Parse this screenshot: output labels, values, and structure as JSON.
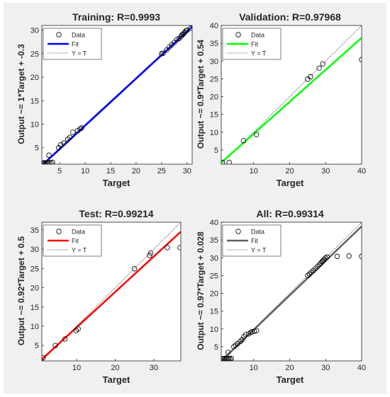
{
  "colors": {
    "figure_bg": "#f0f0f0",
    "axes_bg": "#ffffff",
    "axis_line": "#262626",
    "yt_line": "#404040",
    "marker": "#000000"
  },
  "chart_data": [
    {
      "type": "scatter",
      "title": "Training: R=0.9993",
      "xlabel": "Target",
      "ylabel": "Output ~= 1*Target + -0.3",
      "xlim": [
        1.5,
        31
      ],
      "ylim": [
        1.5,
        31
      ],
      "xticks": [
        5,
        10,
        15,
        20,
        25,
        30
      ],
      "yticks": [
        5,
        10,
        15,
        20,
        25,
        30
      ],
      "fit": {
        "slope": 1.0,
        "intercept": -0.3,
        "color": "#0000ff"
      },
      "legend": {
        "placement": "top-left",
        "entries": [
          "Data",
          "Fit",
          "Y = T"
        ]
      },
      "points": [
        [
          1.6,
          1.7
        ],
        [
          1.8,
          1.7
        ],
        [
          2.0,
          1.8
        ],
        [
          2.2,
          1.7
        ],
        [
          2.5,
          1.8
        ],
        [
          2.7,
          1.7
        ],
        [
          3.0,
          1.8
        ],
        [
          3.3,
          1.8
        ],
        [
          3.6,
          1.9
        ],
        [
          2.9,
          3.4
        ],
        [
          4.8,
          5.0
        ],
        [
          5.2,
          5.6
        ],
        [
          5.8,
          6.0
        ],
        [
          6.6,
          6.8
        ],
        [
          7.0,
          7.2
        ],
        [
          7.6,
          8.3
        ],
        [
          8.5,
          8.6
        ],
        [
          9.0,
          9.0
        ],
        [
          9.3,
          9.2
        ],
        [
          25.0,
          25.0
        ],
        [
          25.3,
          25.1
        ],
        [
          26.0,
          25.8
        ],
        [
          26.5,
          26.4
        ],
        [
          27.0,
          26.9
        ],
        [
          27.5,
          27.4
        ],
        [
          28.0,
          28.0
        ],
        [
          28.4,
          28.2
        ],
        [
          28.8,
          28.6
        ],
        [
          29.0,
          29.0
        ],
        [
          29.2,
          29.1
        ],
        [
          29.4,
          29.4
        ],
        [
          29.6,
          29.6
        ],
        [
          29.8,
          29.9
        ],
        [
          30.0,
          30.0
        ],
        [
          30.7,
          30.4
        ]
      ]
    },
    {
      "type": "scatter",
      "title": "Validation: R=0.97968",
      "xlabel": "Target",
      "ylabel": "Output ~= 0.9*Target + 0.54",
      "xlim": [
        1,
        40
      ],
      "ylim": [
        1,
        40
      ],
      "xticks": [
        10,
        20,
        30,
        40
      ],
      "yticks": [
        5,
        10,
        15,
        20,
        25,
        30,
        35,
        40
      ],
      "fit": {
        "slope": 0.9,
        "intercept": 0.54,
        "color": "#00ff00"
      },
      "legend": {
        "placement": "top-left",
        "entries": [
          "Data",
          "Fit",
          "Y = T"
        ]
      },
      "points": [
        [
          1.3,
          1.5
        ],
        [
          3.2,
          1.5
        ],
        [
          7.2,
          7.6
        ],
        [
          10.8,
          9.3
        ],
        [
          25.0,
          24.9
        ],
        [
          25.8,
          25.6
        ],
        [
          28.2,
          28.0
        ],
        [
          29.2,
          29.2
        ],
        [
          40.0,
          30.4
        ]
      ]
    },
    {
      "type": "scatter",
      "title": "Test: R=0.99214",
      "xlabel": "Target",
      "ylabel": "Output ~= 0.92*Target + 0.5",
      "xlim": [
        1,
        37
      ],
      "ylim": [
        1,
        37
      ],
      "xticks": [
        10,
        20,
        30
      ],
      "yticks": [
        5,
        10,
        15,
        20,
        25,
        30,
        35
      ],
      "fit": {
        "slope": 0.92,
        "intercept": 0.5,
        "color": "#ff0000"
      },
      "legend": {
        "placement": "top-left",
        "entries": [
          "Data",
          "Fit",
          "Y = T"
        ]
      },
      "points": [
        [
          1.3,
          1.8
        ],
        [
          4.5,
          5.0
        ],
        [
          7.0,
          6.7
        ],
        [
          9.9,
          8.9
        ],
        [
          10.4,
          9.3
        ],
        [
          25.0,
          24.9
        ],
        [
          28.9,
          28.4
        ],
        [
          29.2,
          29.0
        ],
        [
          33.5,
          30.4
        ],
        [
          36.8,
          30.4
        ]
      ]
    },
    {
      "type": "scatter",
      "title": "All: R=0.99314",
      "xlabel": "Target",
      "ylabel": "Output ~= 0.97*Target + 0.028",
      "xlim": [
        1,
        40
      ],
      "ylim": [
        1,
        40
      ],
      "xticks": [
        10,
        20,
        30,
        40
      ],
      "yticks": [
        5,
        10,
        15,
        20,
        25,
        30,
        35,
        40
      ],
      "fit": {
        "slope": 0.97,
        "intercept": 0.028,
        "color": "#606060"
      },
      "legend": {
        "placement": "top-left",
        "entries": [
          "Data",
          "Fit",
          "Y = T"
        ]
      },
      "points": [
        [
          1.3,
          1.6
        ],
        [
          1.6,
          1.6
        ],
        [
          1.9,
          1.7
        ],
        [
          2.2,
          1.6
        ],
        [
          2.5,
          1.7
        ],
        [
          2.8,
          1.6
        ],
        [
          3.1,
          1.7
        ],
        [
          3.4,
          1.6
        ],
        [
          3.8,
          1.7
        ],
        [
          2.9,
          3.4
        ],
        [
          4.5,
          5.0
        ],
        [
          5.0,
          5.4
        ],
        [
          5.6,
          5.9
        ],
        [
          6.3,
          6.5
        ],
        [
          6.8,
          7.0
        ],
        [
          7.3,
          7.8
        ],
        [
          7.8,
          8.4
        ],
        [
          8.6,
          8.6
        ],
        [
          9.2,
          9.0
        ],
        [
          9.6,
          9.2
        ],
        [
          10.2,
          9.3
        ],
        [
          10.8,
          9.5
        ],
        [
          25.0,
          25.0
        ],
        [
          25.5,
          25.4
        ],
        [
          26.0,
          25.9
        ],
        [
          26.6,
          26.4
        ],
        [
          27.2,
          27.0
        ],
        [
          27.8,
          27.6
        ],
        [
          28.3,
          28.1
        ],
        [
          28.7,
          28.5
        ],
        [
          29.0,
          28.9
        ],
        [
          29.3,
          29.2
        ],
        [
          29.6,
          29.5
        ],
        [
          29.9,
          29.9
        ],
        [
          30.4,
          30.2
        ],
        [
          33.2,
          30.4
        ],
        [
          36.5,
          30.5
        ],
        [
          40.0,
          30.4
        ]
      ]
    }
  ]
}
